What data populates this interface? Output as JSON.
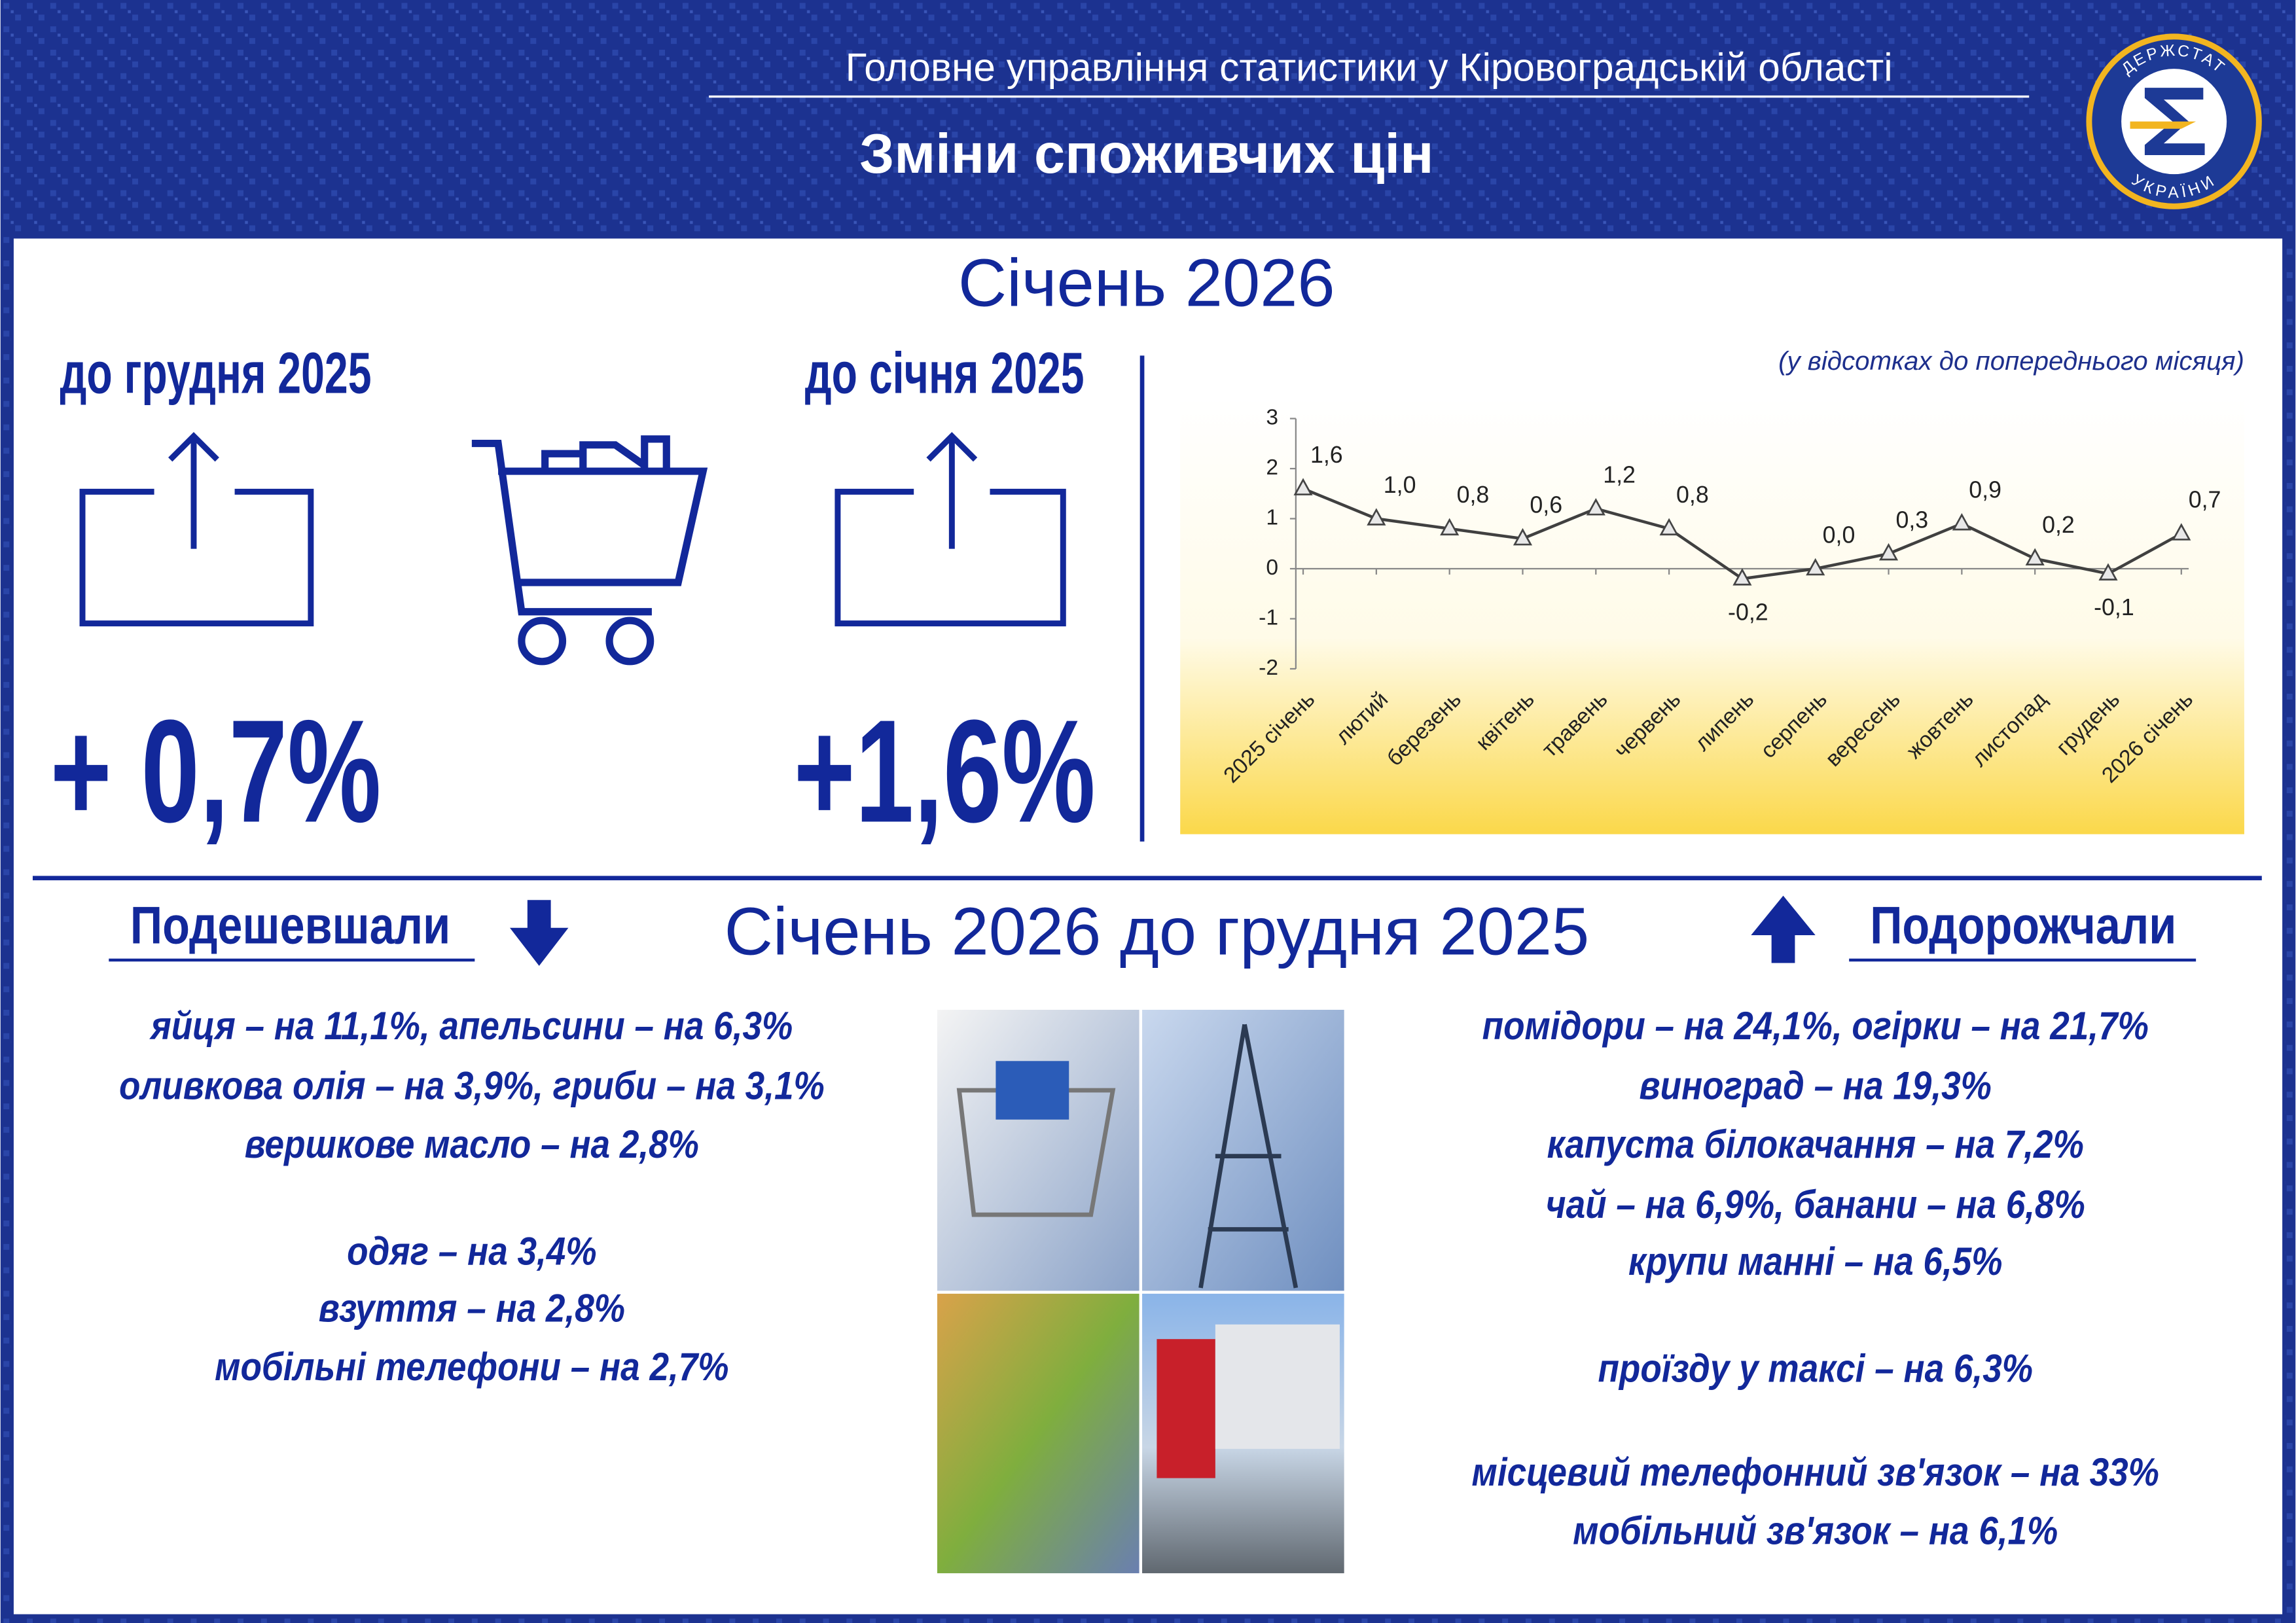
{
  "header": {
    "organization": "Головне управління статистики у Кіровоградській області",
    "title": "Зміни споживчих цін",
    "logo_top": "ДЕРЖСТАТ",
    "logo_bottom": "УКРАЇНИ"
  },
  "period": "Січень 2026",
  "indicators": [
    {
      "label": "до грудня 2025",
      "value": "+ 0,7%"
    },
    {
      "label": "до січня 2025",
      "value": "+1,6%"
    }
  ],
  "chart_data": {
    "type": "line",
    "subtitle": "(у відсотках до попереднього місяця)",
    "categories": [
      "2025 січень",
      "лютий",
      "березень",
      "квітень",
      "травень",
      "червень",
      "липень",
      "серпень",
      "вересень",
      "жовтень",
      "листопад",
      "грудень",
      "2026 січень"
    ],
    "values": [
      1.6,
      1.0,
      0.8,
      0.6,
      1.2,
      0.8,
      -0.2,
      0.0,
      0.3,
      0.9,
      0.2,
      -0.1,
      0.7
    ],
    "value_labels": [
      "1,6",
      "1,0",
      "0,8",
      "0,6",
      "1,2",
      "0,8",
      "-0,2",
      "0,0",
      "0,3",
      "0,9",
      "0,2",
      "-0,1",
      "0,7"
    ],
    "color": "#404040",
    "ylim": [
      -2,
      3
    ],
    "yticks": [
      -2,
      -1,
      0,
      1,
      2,
      3
    ]
  },
  "comparison": {
    "title": "Січень 2026 до грудня 2025",
    "cheaper": {
      "heading": "Подешевшали",
      "groups": [
        [
          "яйця – на 11,1%, апельсини – на 6,3%",
          "оливкова олія – на 3,9%, гриби – на 3,1%",
          "вершкове масло – на 2,8%"
        ],
        [
          "одяг – на 3,4%",
          "взуття – на 2,8%",
          "мобільні телефони – на 2,7%"
        ]
      ]
    },
    "pricier": {
      "heading": "Подорожчали",
      "groups": [
        [
          "помідори – на 24,1%, огірки – на 21,7%",
          "виноград – на 19,3%",
          "капуста білокачання – на 7,2%",
          "чай – на 6,9%, банани – на 6,8%",
          "крупи манні – на 6,5%"
        ],
        [
          "проїзду у таксі – на 6,3%"
        ],
        [
          "місцевий телефонний зв'язок – на 33%",
          "мобільний зв'язок – на 6,1%"
        ]
      ]
    }
  }
}
